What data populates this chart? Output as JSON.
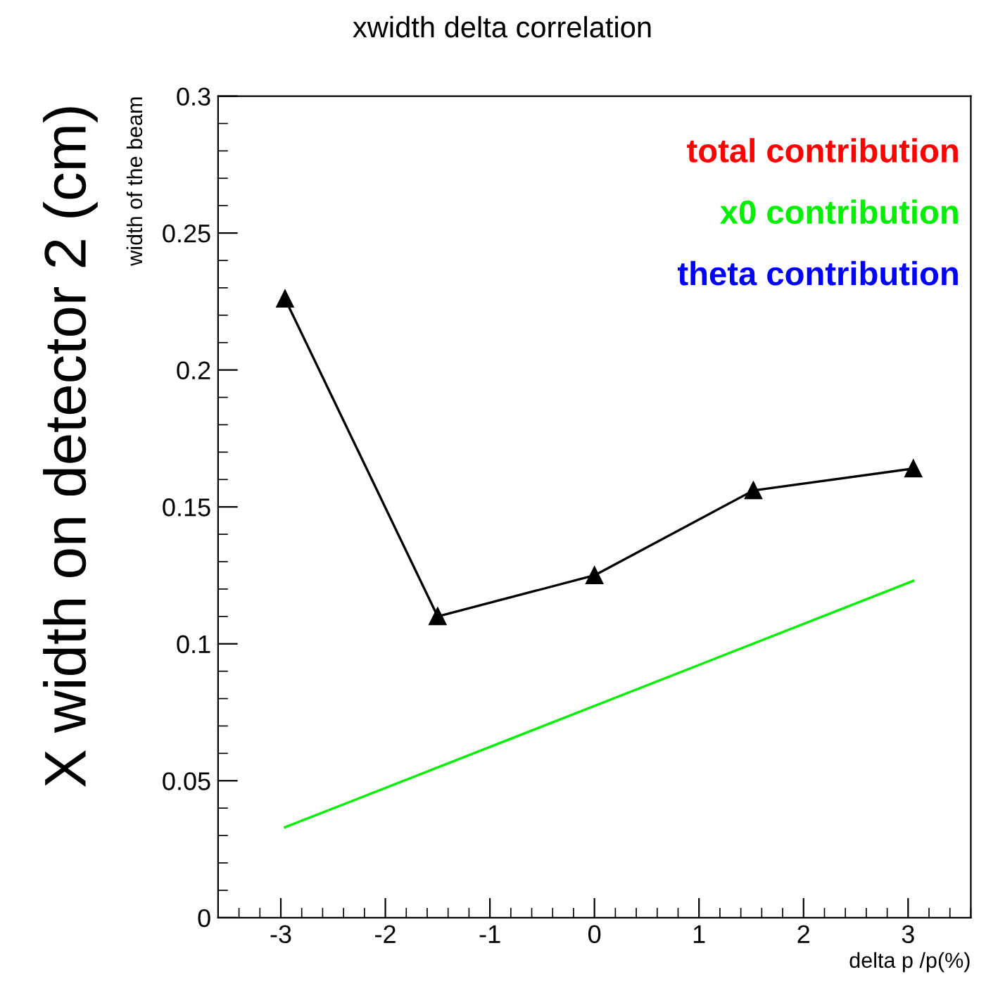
{
  "chart_data": {
    "type": "line",
    "title": "xwidth delta correlation",
    "xlabel": "delta p /p(%)",
    "ylabel": "width of the beam",
    "annotations": [
      "X width on detector 2 (cm)"
    ],
    "xlim": [
      -3.6,
      3.6
    ],
    "xticks": [
      -3,
      -2,
      -1,
      0,
      1,
      2,
      3
    ],
    "ylim": [
      0,
      0.3
    ],
    "yticks": [
      0,
      0.05,
      0.1,
      0.15,
      0.2,
      0.25,
      0.3
    ],
    "series": [
      {
        "color": "#000000",
        "marker": "triangle",
        "x": [
          -2.96,
          -1.5,
          0,
          1.52,
          3.05
        ],
        "values": [
          0.226,
          0.11,
          0.125,
          0.156,
          0.164
        ]
      },
      {
        "name": "total contribution",
        "color": "#ff0000"
      },
      {
        "name": "x0 contribution",
        "color": "#00ee00",
        "marker": "none",
        "x": [
          -2.96,
          3.05
        ],
        "values": [
          0.033,
          0.123
        ]
      },
      {
        "name": "theta contribution",
        "color": "#0000ff"
      }
    ],
    "legend": "top right",
    "grid": false
  }
}
